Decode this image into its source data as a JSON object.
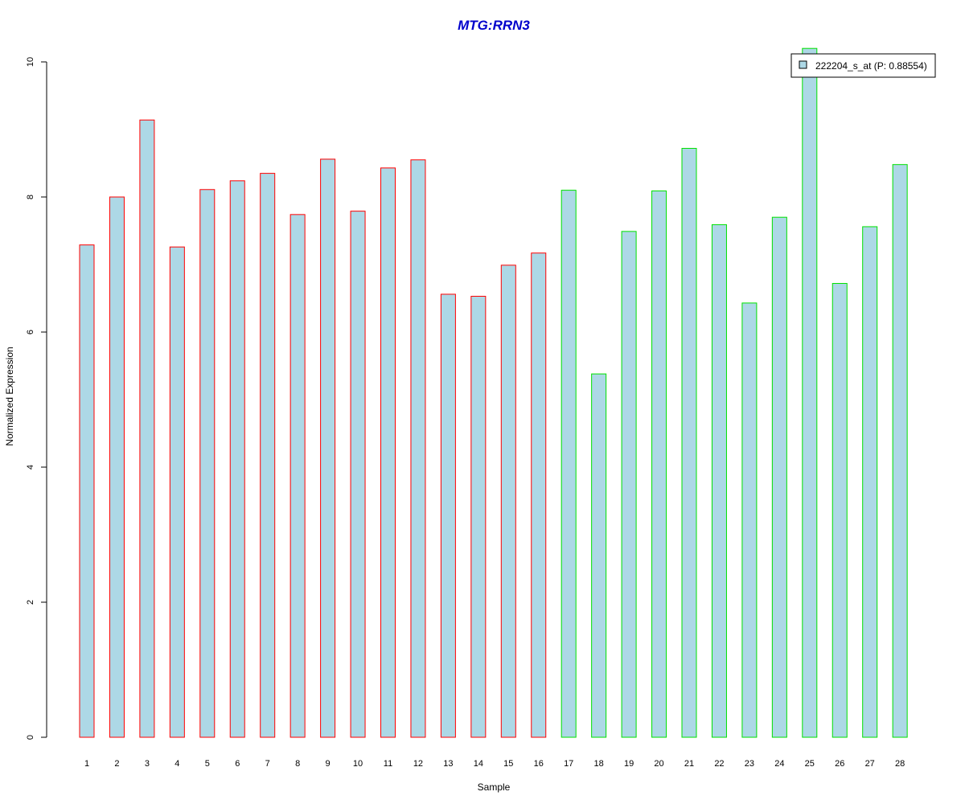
{
  "chart_data": {
    "type": "bar",
    "title": "MTG:RRN3",
    "xlabel": "Sample",
    "ylabel": "Normalized Expression",
    "categories": [
      "1",
      "2",
      "3",
      "4",
      "5",
      "6",
      "7",
      "8",
      "9",
      "10",
      "11",
      "12",
      "13",
      "14",
      "15",
      "16",
      "17",
      "18",
      "19",
      "20",
      "21",
      "22",
      "23",
      "24",
      "25",
      "26",
      "27",
      "28"
    ],
    "series": [
      {
        "name": "222204_s_at (P: 0.88554)",
        "values": [
          7.29,
          8.0,
          9.14,
          7.26,
          8.11,
          8.24,
          8.35,
          7.74,
          8.56,
          7.79,
          8.43,
          8.55,
          6.56,
          6.53,
          6.99,
          7.17,
          8.1,
          5.38,
          7.49,
          8.09,
          8.72,
          7.59,
          6.43,
          7.7,
          10.2,
          6.72,
          7.56,
          8.48
        ]
      }
    ],
    "groups": [
      {
        "range": [
          1,
          16
        ],
        "border_color": "#ff0000"
      },
      {
        "range": [
          17,
          28
        ],
        "border_color": "#00e000"
      }
    ],
    "ylim": [
      0,
      10
    ],
    "yticks": [
      0,
      2,
      4,
      6,
      8,
      10
    ],
    "legend_position": "top-right",
    "grid": false,
    "colors": {
      "bar_fill": "#add8e6",
      "title": "#0000cc",
      "axis": "#000000"
    }
  }
}
